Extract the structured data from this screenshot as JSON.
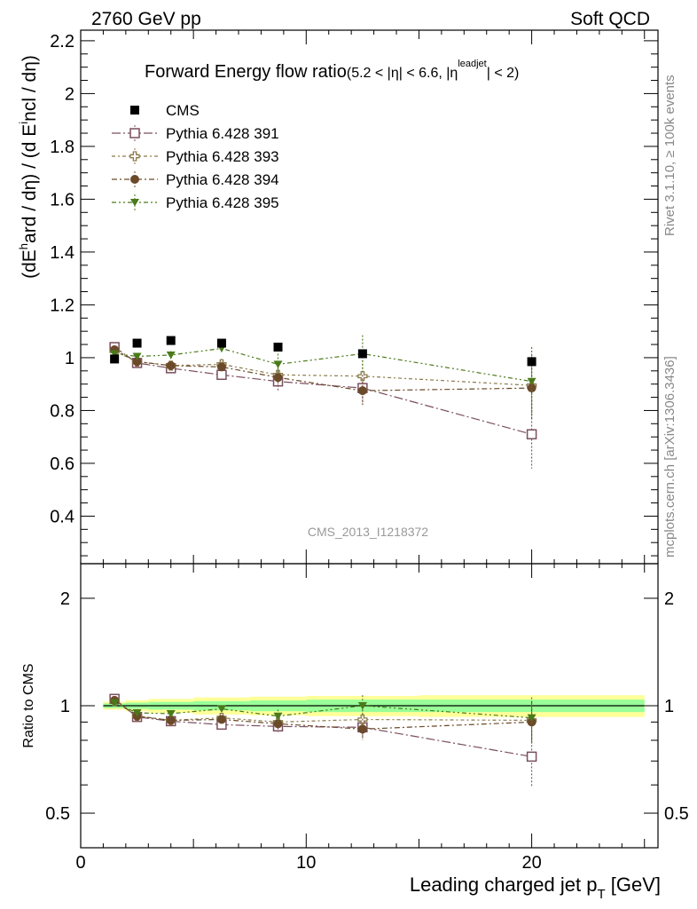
{
  "header": {
    "left": "2760 GeV pp",
    "right": "Soft QCD"
  },
  "side_labels": {
    "rivet": "Rivet 3.1.10, ≥ 100k events",
    "mcplots": "mcplots.cern.ch [arXiv:1306.3436]"
  },
  "watermark": "CMS_2013_I1218372",
  "chart_data": [
    {
      "type": "scatter",
      "panel": "main",
      "title_main": "Forward Energy flow ratio",
      "title_sub": "(5.2 < |η| < 6.6, |η",
      "title_sup": "leadjet",
      "title_end": "| < 2)",
      "ylabel": "(dE^hard / dη) / (d E^incl / dη)",
      "ylabel_parts": {
        "a": "(dE",
        "sup1": "h",
        "b": "ard / dη) / (d E",
        "sup2": "i",
        "c": "ncl / dη)"
      },
      "xlim": [
        0,
        25.6
      ],
      "ylim": [
        0.22,
        2.24
      ],
      "y_ticks": [
        "0.4",
        "0.6",
        "0.8",
        "1",
        "1.2",
        "1.4",
        "1.6",
        "1.8",
        "2",
        "2.2"
      ],
      "legend_position": "top-left",
      "x": [
        1.5,
        2.5,
        4.0,
        6.25,
        8.75,
        12.5,
        20.0
      ],
      "series": [
        {
          "name": "CMS",
          "color": "#000000",
          "marker": "square-filled",
          "values": [
            0.995,
            1.055,
            1.065,
            1.055,
            1.04,
            1.015,
            0.985
          ],
          "errors": [
            0.005,
            0.005,
            0.005,
            0.01,
            0.01,
            0.015,
            0.015
          ]
        },
        {
          "name": "Pythia 6.428 391",
          "color": "#7a4f5f",
          "marker": "square-open",
          "values": [
            1.04,
            0.98,
            0.96,
            0.935,
            0.91,
            0.885,
            0.71
          ],
          "errors": [
            0.01,
            0.01,
            0.015,
            0.02,
            0.04,
            0.06,
            0.13
          ]
        },
        {
          "name": "Pythia 6.428 393",
          "color": "#8a7a4a",
          "marker": "cross-open",
          "values": [
            1.025,
            0.985,
            0.97,
            0.975,
            0.935,
            0.93,
            0.895
          ],
          "errors": [
            0.01,
            0.01,
            0.015,
            0.02,
            0.04,
            0.06,
            0.12
          ]
        },
        {
          "name": "Pythia 6.428 394",
          "color": "#6b4a2a",
          "marker": "circle-filled",
          "values": [
            1.03,
            0.985,
            0.97,
            0.965,
            0.925,
            0.875,
            0.885
          ],
          "errors": [
            0.01,
            0.01,
            0.015,
            0.02,
            0.04,
            0.06,
            0.12
          ]
        },
        {
          "name": "Pythia 6.428 395",
          "color": "#4a7a1a",
          "marker": "triangle-down-filled",
          "values": [
            1.015,
            1.005,
            1.01,
            1.035,
            0.975,
            1.015,
            0.91
          ],
          "errors": [
            0.01,
            0.01,
            0.015,
            0.02,
            0.04,
            0.07,
            0.13
          ]
        }
      ]
    },
    {
      "type": "scatter",
      "panel": "ratio",
      "ylabel": "Ratio to CMS",
      "xlabel": "Leading charged jet p",
      "xlabel_sub": "T",
      "xlabel_end": " [GeV]",
      "xlim": [
        0,
        25.6
      ],
      "y_scale": "log",
      "ylim": [
        0.4,
        2.5
      ],
      "y_ticks": [
        "0.5",
        "1",
        "2"
      ],
      "x_ticks": [
        "0",
        "10",
        "20"
      ],
      "reference_line": 1,
      "bands": [
        {
          "x0": 1.0,
          "x1": 2.0,
          "yellow": [
            0.975,
            1.025
          ],
          "green": [
            0.985,
            1.015
          ]
        },
        {
          "x0": 2.0,
          "x1": 3.0,
          "yellow": [
            0.965,
            1.035
          ],
          "green": [
            0.98,
            1.02
          ]
        },
        {
          "x0": 3.0,
          "x1": 5.0,
          "yellow": [
            0.955,
            1.045
          ],
          "green": [
            0.975,
            1.025
          ]
        },
        {
          "x0": 5.0,
          "x1": 7.5,
          "yellow": [
            0.945,
            1.055
          ],
          "green": [
            0.97,
            1.03
          ]
        },
        {
          "x0": 7.5,
          "x1": 10.0,
          "yellow": [
            0.94,
            1.06
          ],
          "green": [
            0.965,
            1.035
          ]
        },
        {
          "x0": 10.0,
          "x1": 15.0,
          "yellow": [
            0.935,
            1.065
          ],
          "green": [
            0.96,
            1.04
          ]
        },
        {
          "x0": 15.0,
          "x1": 25.0,
          "yellow": [
            0.93,
            1.07
          ],
          "green": [
            0.96,
            1.04
          ]
        }
      ],
      "series": [
        {
          "name": "Pythia 6.428 391",
          "color": "#7a4f5f",
          "marker": "square-open",
          "values": [
            1.045,
            0.93,
            0.905,
            0.885,
            0.875,
            0.87,
            0.72
          ],
          "errors": [
            0.01,
            0.01,
            0.015,
            0.02,
            0.04,
            0.06,
            0.13
          ]
        },
        {
          "name": "Pythia 6.428 393",
          "color": "#8a7a4a",
          "marker": "cross-open",
          "values": [
            1.03,
            0.935,
            0.91,
            0.925,
            0.9,
            0.915,
            0.91
          ],
          "errors": [
            0.01,
            0.01,
            0.015,
            0.02,
            0.04,
            0.06,
            0.12
          ]
        },
        {
          "name": "Pythia 6.428 394",
          "color": "#6b4a2a",
          "marker": "circle-filled",
          "values": [
            1.035,
            0.935,
            0.91,
            0.915,
            0.89,
            0.86,
            0.9
          ],
          "errors": [
            0.01,
            0.01,
            0.015,
            0.02,
            0.04,
            0.06,
            0.12
          ]
        },
        {
          "name": "Pythia 6.428 395",
          "color": "#4a7a1a",
          "marker": "triangle-down-filled",
          "values": [
            1.02,
            0.955,
            0.95,
            0.98,
            0.935,
            1.0,
            0.925
          ],
          "errors": [
            0.01,
            0.01,
            0.015,
            0.02,
            0.04,
            0.07,
            0.13
          ]
        }
      ]
    }
  ]
}
